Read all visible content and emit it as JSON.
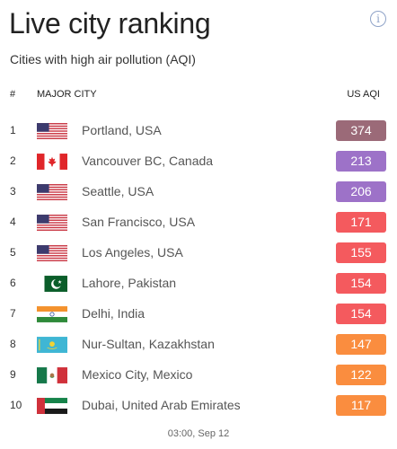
{
  "title": "Live city ranking",
  "subtitle": "Cities with high air pollution (AQI)",
  "info_icon": "info-icon",
  "columns": {
    "rank": "#",
    "city": "MAJOR CITY",
    "aqi": "US AQI"
  },
  "colors": {
    "hazardous": "#9b6a78",
    "very_unhealthy": "#9d72c8",
    "unhealthy": "#f45a5e",
    "unhealthy_sensitive": "#fa8d3f"
  },
  "rows": [
    {
      "rank": "1",
      "flag": "us-flag-icon",
      "city": "Portland, USA",
      "aqi": "374",
      "color": "#9b6a78"
    },
    {
      "rank": "2",
      "flag": "canada-flag-icon",
      "city": "Vancouver BC, Canada",
      "aqi": "213",
      "color": "#9d72c8"
    },
    {
      "rank": "3",
      "flag": "us-flag-icon",
      "city": "Seattle, USA",
      "aqi": "206",
      "color": "#9d72c8"
    },
    {
      "rank": "4",
      "flag": "us-flag-icon",
      "city": "San Francisco, USA",
      "aqi": "171",
      "color": "#f45a5e"
    },
    {
      "rank": "5",
      "flag": "us-flag-icon",
      "city": "Los Angeles, USA",
      "aqi": "155",
      "color": "#f45a5e"
    },
    {
      "rank": "6",
      "flag": "pakistan-flag-icon",
      "city": "Lahore, Pakistan",
      "aqi": "154",
      "color": "#f45a5e"
    },
    {
      "rank": "7",
      "flag": "india-flag-icon",
      "city": "Delhi, India",
      "aqi": "154",
      "color": "#f45a5e"
    },
    {
      "rank": "8",
      "flag": "kazakhstan-flag-icon",
      "city": "Nur-Sultan, Kazakhstan",
      "aqi": "147",
      "color": "#fa8d3f"
    },
    {
      "rank": "9",
      "flag": "mexico-flag-icon",
      "city": "Mexico City, Mexico",
      "aqi": "122",
      "color": "#fa8d3f"
    },
    {
      "rank": "10",
      "flag": "uae-flag-icon",
      "city": "Dubai, United Arab Emirates",
      "aqi": "117",
      "color": "#fa8d3f"
    }
  ],
  "footer": "03:00, Sep 12"
}
